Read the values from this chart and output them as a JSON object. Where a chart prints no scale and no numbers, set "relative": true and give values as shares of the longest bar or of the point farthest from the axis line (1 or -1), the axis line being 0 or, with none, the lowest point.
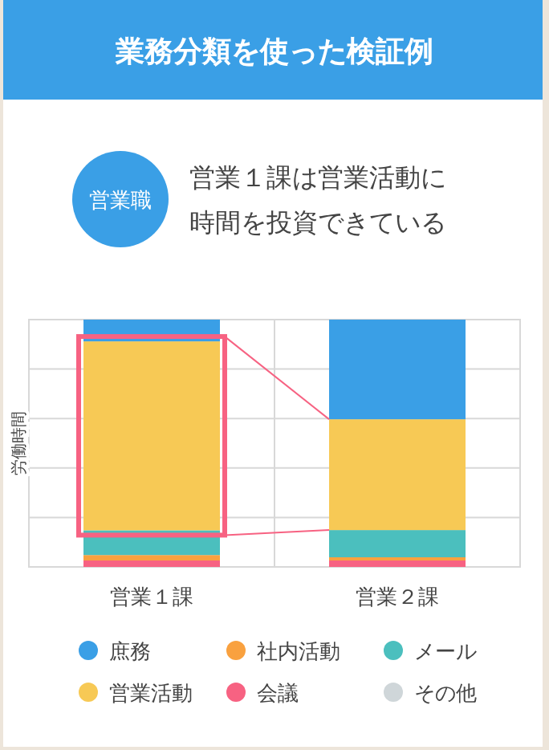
{
  "chart_data": {
    "type": "bar",
    "title": "業務分類を使った検証例",
    "subtitle": "営業１課は営業活動に時間を投資できている",
    "annotations": [
      "営業職"
    ],
    "ylabel": "労働時間",
    "categories": [
      "営業１課",
      "営業２課"
    ],
    "stacked": true,
    "relative": true,
    "grid": true,
    "legend": "bottom",
    "series": [
      {
        "name": "会議",
        "color": "#f76282",
        "values": [
          0.026,
          0.026
        ]
      },
      {
        "name": "社内活動",
        "color": "#f9a13f",
        "values": [
          0.022,
          0.013
        ]
      },
      {
        "name": "メール",
        "color": "#4bbfbe",
        "values": [
          0.1,
          0.11
        ]
      },
      {
        "name": "営業活動",
        "color": "#f7c955",
        "values": [
          0.764,
          0.448
        ]
      },
      {
        "name": "庶務",
        "color": "#3a9fe6",
        "values": [
          0.088,
          0.403
        ]
      },
      {
        "name": "その他",
        "color": "#cfd6d9",
        "values": [
          0,
          0
        ]
      }
    ]
  }
}
